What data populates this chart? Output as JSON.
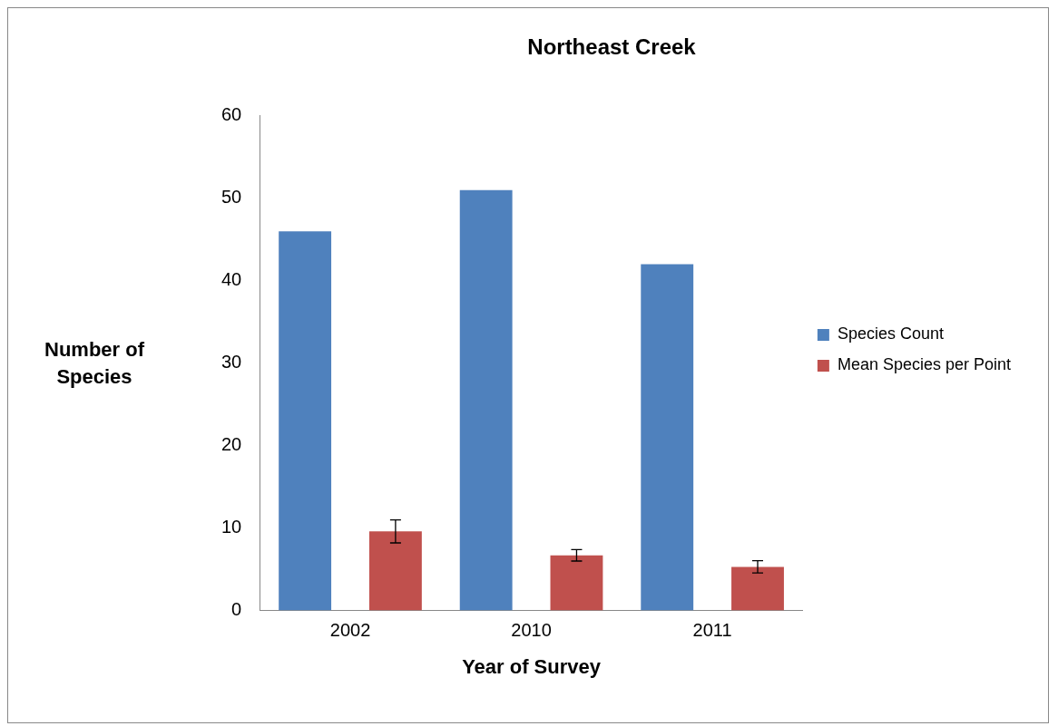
{
  "chart_data": {
    "type": "bar",
    "title": "Northeast Creek",
    "xlabel": "Year of Survey",
    "ylabel": "Number of Species",
    "categories": [
      "2002",
      "2010",
      "2011"
    ],
    "series": [
      {
        "name": "Species Count",
        "color": "#4f81bd",
        "values": [
          46,
          51,
          42
        ]
      },
      {
        "name": "Mean Species per Point",
        "color": "#c0504d",
        "values": [
          9.6,
          6.7,
          5.3
        ],
        "errors": [
          1.4,
          0.7,
          0.75
        ]
      }
    ],
    "ylim": [
      0,
      60
    ],
    "yticks": [
      0,
      10,
      20,
      30,
      40,
      50,
      60
    ],
    "grid": false,
    "legend": "right"
  }
}
